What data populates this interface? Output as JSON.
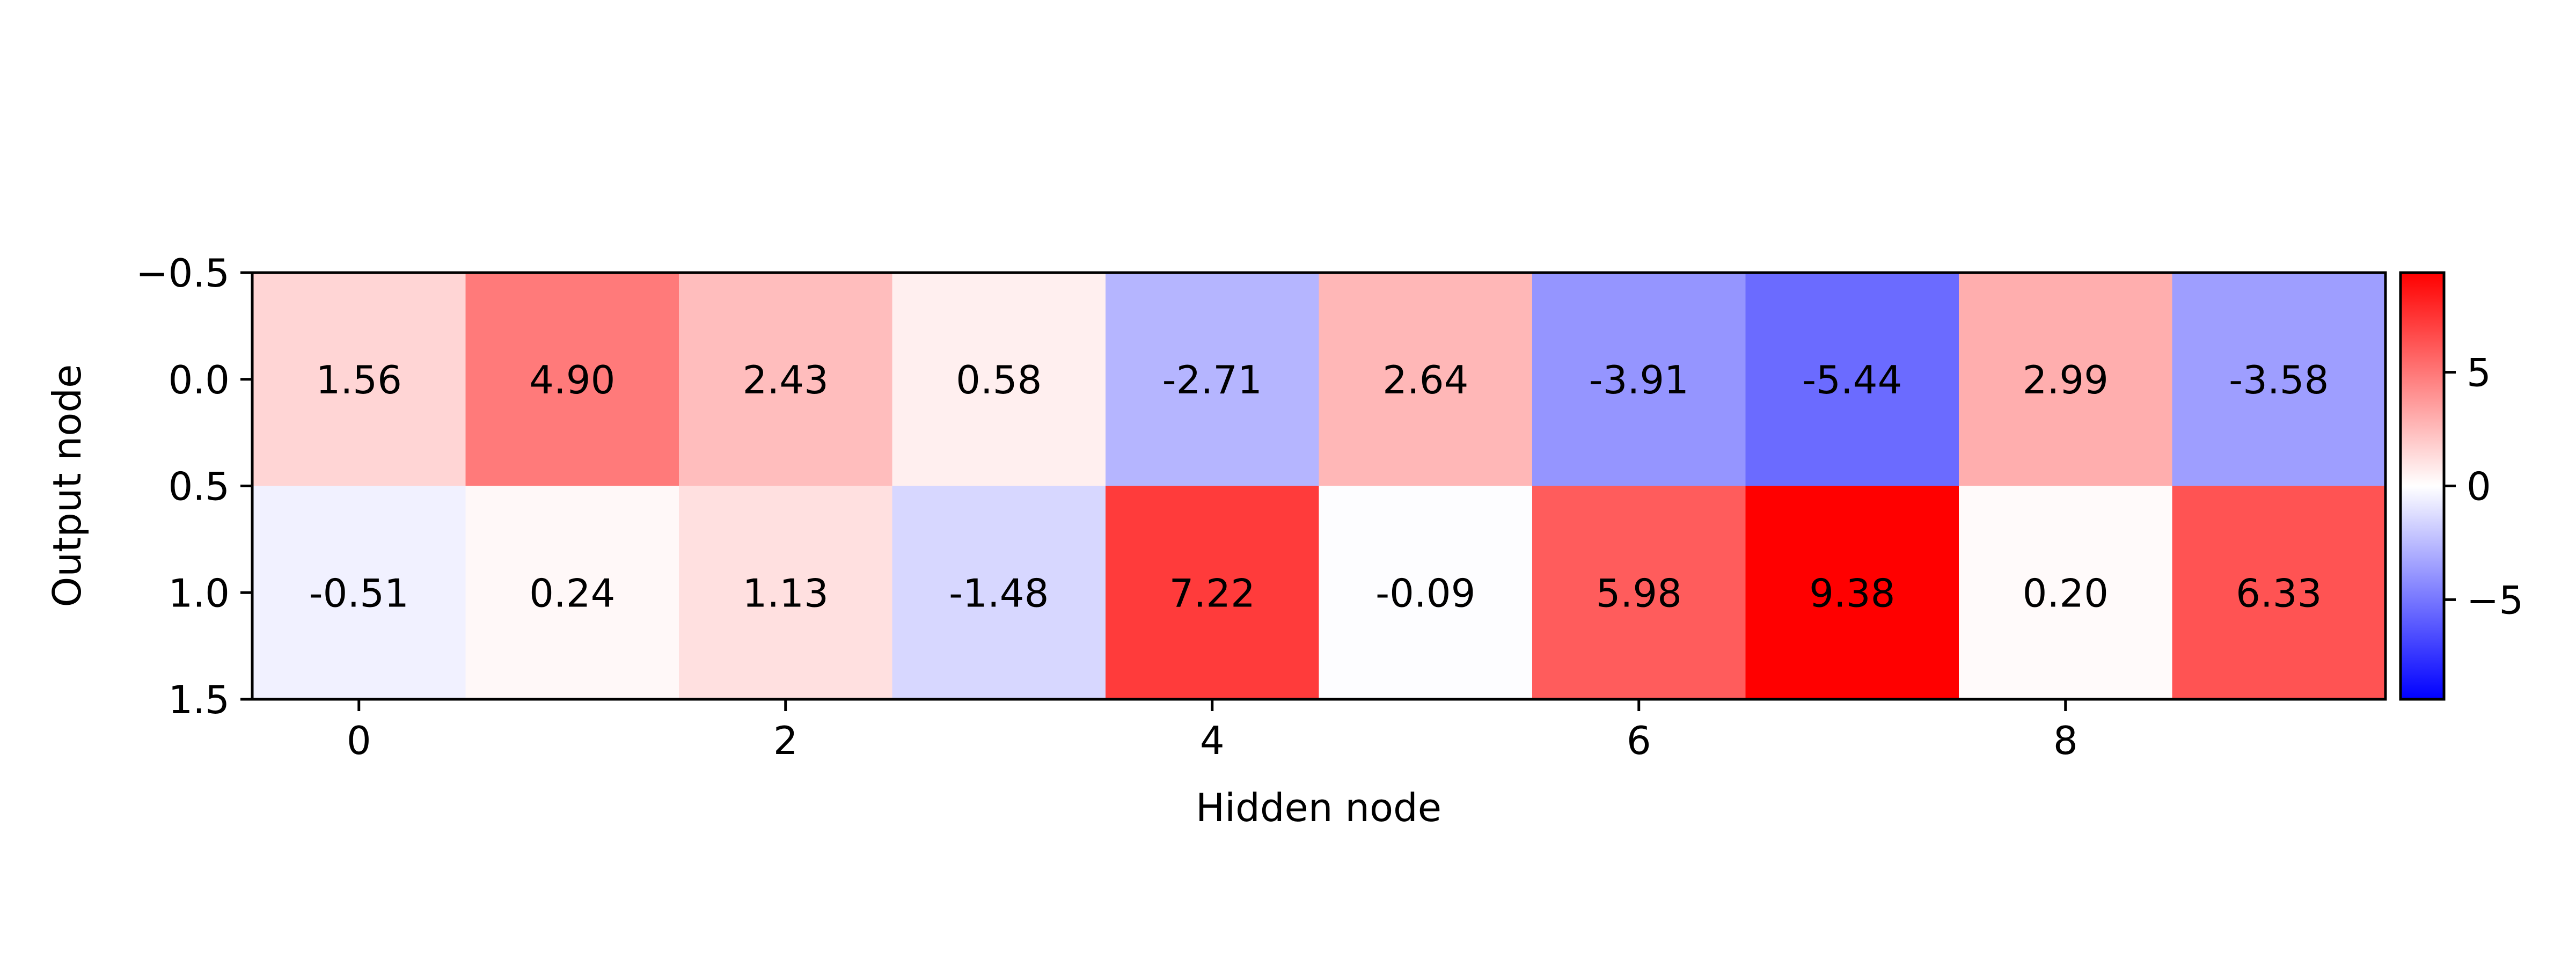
{
  "chart_data": {
    "type": "heatmap",
    "title": "",
    "xlabel": "Hidden node",
    "ylabel": "Output node",
    "rows": [
      0,
      1
    ],
    "columns": [
      0,
      1,
      2,
      3,
      4,
      5,
      6,
      7,
      8,
      9
    ],
    "values": [
      [
        1.56,
        4.9,
        2.43,
        0.58,
        -2.71,
        2.64,
        -3.91,
        -5.44,
        2.99,
        -3.58
      ],
      [
        -0.51,
        0.24,
        1.13,
        -1.48,
        7.22,
        -0.09,
        5.98,
        9.38,
        0.2,
        6.33
      ]
    ],
    "cell_labels": [
      [
        "1.56",
        "4.90",
        "2.43",
        "0.58",
        "-2.71",
        "2.64",
        "-3.91",
        "-5.44",
        "2.99",
        "-3.58"
      ],
      [
        "-0.51",
        "0.24",
        "1.13",
        "-1.48",
        "7.22",
        "-0.09",
        "5.98",
        "9.38",
        "0.20",
        "6.33"
      ]
    ],
    "x_ticks": [
      {
        "value": 0,
        "label": "0"
      },
      {
        "value": 2,
        "label": "2"
      },
      {
        "value": 4,
        "label": "4"
      },
      {
        "value": 6,
        "label": "6"
      },
      {
        "value": 8,
        "label": "8"
      }
    ],
    "y_ticks": [
      {
        "value": -0.5,
        "label": "−0.5"
      },
      {
        "value": 0.0,
        "label": "0.0"
      },
      {
        "value": 0.5,
        "label": "0.5"
      },
      {
        "value": 1.0,
        "label": "1.0"
      },
      {
        "value": 1.5,
        "label": "1.5"
      }
    ],
    "xlim": [
      -0.5,
      9.5
    ],
    "ylim": [
      1.5,
      -0.5
    ],
    "colormap": "bwr",
    "color_range": [
      -9.38,
      9.38
    ],
    "colorbar": {
      "position": "right",
      "ticks": [
        {
          "value": 5,
          "label": "5"
        },
        {
          "value": 0,
          "label": "0"
        },
        {
          "value": -5,
          "label": "−5"
        }
      ]
    },
    "grid": false,
    "colors": {
      "negative": "#0000ff",
      "neutral": "#ffffff",
      "positive": "#ff0000",
      "text": "#000000"
    }
  }
}
